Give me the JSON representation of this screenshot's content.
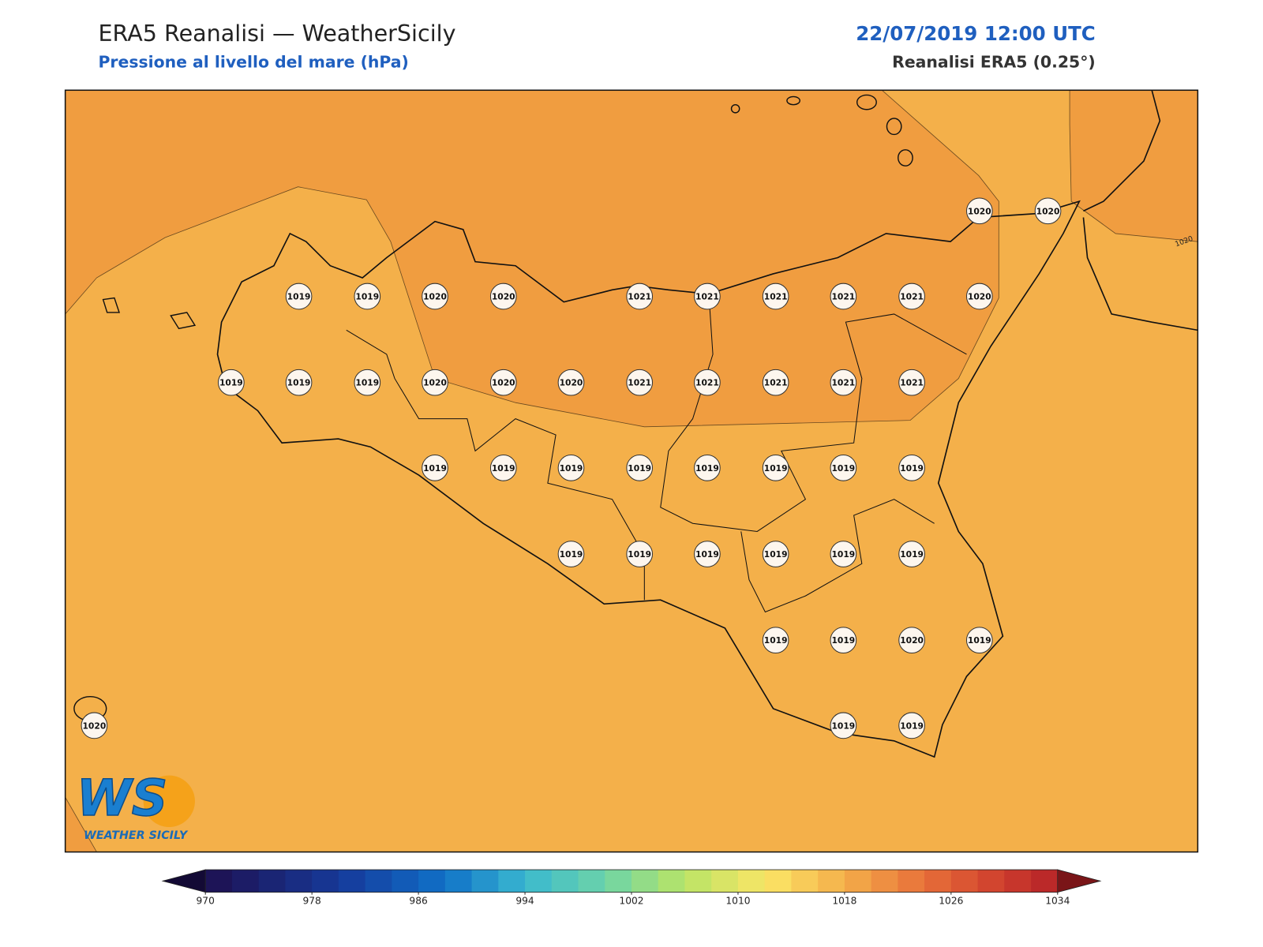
{
  "header": {
    "title": "ERA5 Reanalisi — WeatherSicily",
    "subtitle": "Pressione al livello del mare (hPa)",
    "datetime": "22/07/2019 12:00 UTC",
    "source": "Reanalisi ERA5 (0.25°)"
  },
  "map": {
    "points": [
      1020,
      1020,
      1019,
      1019,
      1020,
      1020,
      1021,
      1021,
      1021,
      1021,
      1021,
      1020,
      1019,
      1019,
      1019,
      1020,
      1020,
      1020,
      1021,
      1021,
      1021,
      1021,
      1021,
      1019,
      1019,
      1019,
      1019,
      1019,
      1019,
      1019,
      1019,
      1019,
      1019,
      1019,
      1019,
      1019,
      1019,
      1019,
      1019,
      1020,
      1019,
      1020,
      1019,
      1019
    ],
    "contour_label": "1020"
  },
  "colorbar": {
    "ticks": [
      970,
      978,
      986,
      994,
      1002,
      1010,
      1018,
      1026,
      1034
    ]
  },
  "logo": {
    "mark": "WS",
    "name": "WEATHER SICILY"
  }
}
